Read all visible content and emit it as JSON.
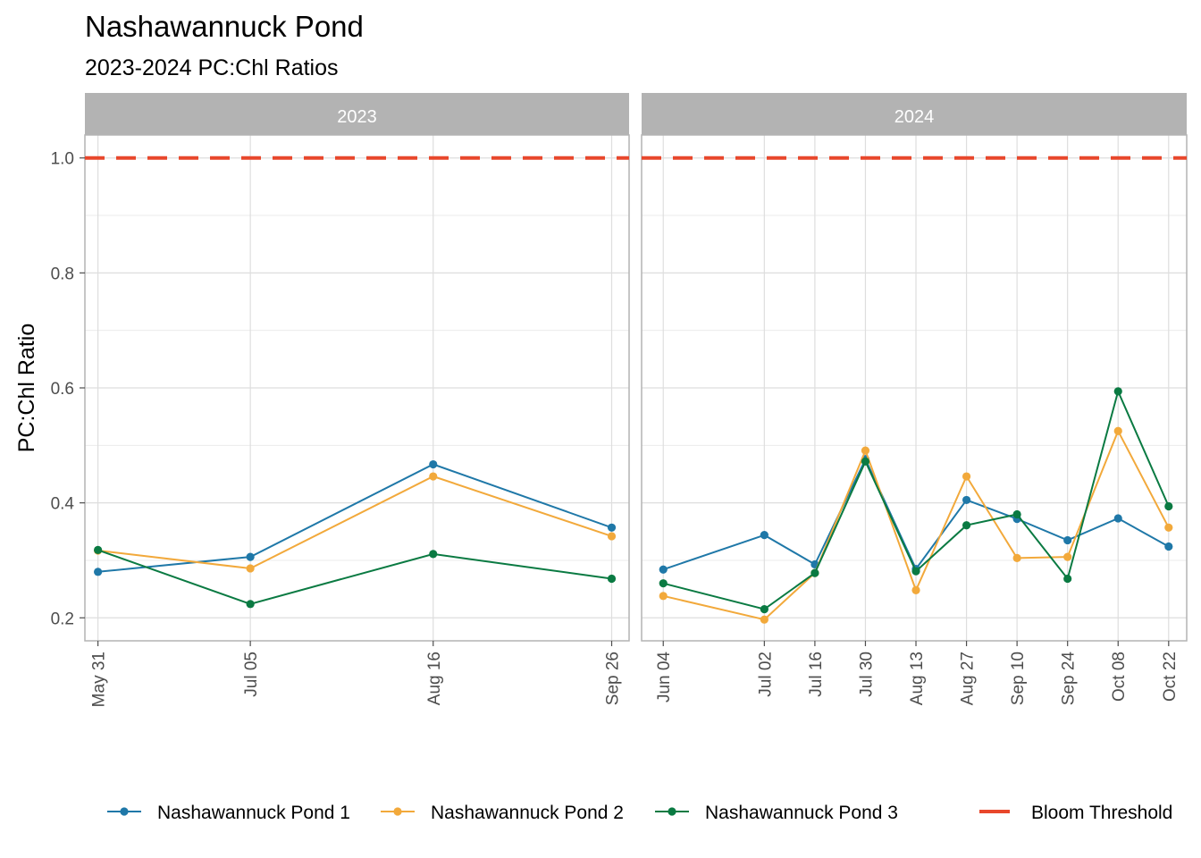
{
  "chart_data": {
    "type": "line",
    "title": "Nashawannuck Pond",
    "subtitle": "2023-2024 PC:Chl Ratios",
    "ylabel": "PC:Chl Ratio",
    "xlabel": "",
    "ylim": [
      0.16,
      1.04
    ],
    "yticks": [
      "0.2",
      "0.4",
      "0.6",
      "0.8",
      "1.0"
    ],
    "grid": true,
    "legend_position": "bottom",
    "threshold": {
      "name": "Bloom Threshold",
      "value": 1.0,
      "color": "#e8472b"
    },
    "panels": [
      {
        "label": "2023",
        "xlim": [
          "2023-05-28",
          "2023-09-30"
        ],
        "x": [
          "May 31",
          "Jul 05",
          "Aug 16",
          "Sep 26"
        ],
        "dates": [
          "2023-05-31",
          "2023-07-05",
          "2023-08-16",
          "2023-09-26"
        ],
        "series": [
          {
            "name": "Nashawannuck Pond 1",
            "color": "#1f78a8",
            "values": [
              0.28,
              0.306,
              0.467,
              0.357
            ]
          },
          {
            "name": "Nashawannuck Pond 2",
            "color": "#f2a93b",
            "values": [
              0.317,
              0.286,
              0.446,
              0.342
            ]
          },
          {
            "name": "Nashawannuck Pond 3",
            "color": "#0a7a42",
            "values": [
              0.318,
              0.224,
              0.311,
              0.268
            ]
          }
        ]
      },
      {
        "label": "2024",
        "xlim": [
          "2024-05-29",
          "2024-10-27"
        ],
        "x": [
          "Jun 04",
          "Jul 02",
          "Jul 16",
          "Jul 30",
          "Aug 13",
          "Aug 27",
          "Sep 10",
          "Sep 24",
          "Oct 08",
          "Oct 22"
        ],
        "dates": [
          "2024-06-04",
          "2024-07-02",
          "2024-07-16",
          "2024-07-30",
          "2024-08-13",
          "2024-08-27",
          "2024-09-10",
          "2024-09-24",
          "2024-10-08",
          "2024-10-22"
        ],
        "series": [
          {
            "name": "Nashawannuck Pond 1",
            "color": "#1f78a8",
            "values": [
              0.284,
              0.344,
              0.293,
              0.476,
              0.285,
              0.405,
              0.372,
              0.335,
              0.373,
              0.324
            ]
          },
          {
            "name": "Nashawannuck Pond 2",
            "color": "#f2a93b",
            "values": [
              0.238,
              0.197,
              0.278,
              0.491,
              0.248,
              0.446,
              0.304,
              0.306,
              0.525,
              0.357
            ]
          },
          {
            "name": "Nashawannuck Pond 3",
            "color": "#0a7a42",
            "values": [
              0.26,
              0.215,
              0.278,
              0.472,
              0.281,
              0.361,
              0.38,
              0.268,
              0.594,
              0.394
            ]
          }
        ]
      }
    ],
    "legend": [
      "Nashawannuck Pond 1",
      "Nashawannuck Pond 2",
      "Nashawannuck Pond 3",
      "Bloom Threshold"
    ]
  }
}
